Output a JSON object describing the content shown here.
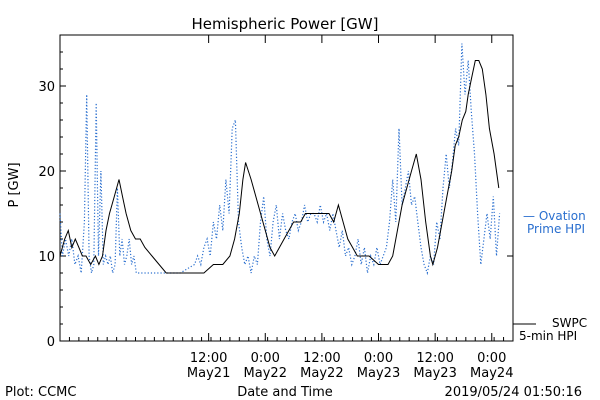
{
  "chart_data": {
    "type": "line",
    "title": "Hemispheric Power [GW]",
    "xlabel": "Date and Time",
    "ylabel": "P [GW]",
    "xlim": [
      "2019-05-20T04:30",
      "2019-05-24T04:30"
    ],
    "ylim": [
      0,
      36
    ],
    "yticks": [
      0,
      10,
      20,
      30
    ],
    "xticks": [
      {
        "t": "2019-05-21T12:00",
        "time": "12:00",
        "date": "May21"
      },
      {
        "t": "2019-05-22T00:00",
        "time": "0:00",
        "date": "May22"
      },
      {
        "t": "2019-05-22T12:00",
        "time": "12:00",
        "date": "May22"
      },
      {
        "t": "2019-05-23T00:00",
        "time": "0:00",
        "date": "May23"
      },
      {
        "t": "2019-05-23T12:00",
        "time": "12:00",
        "date": "May23"
      },
      {
        "t": "2019-05-24T00:00",
        "time": "0:00",
        "date": "May24"
      }
    ],
    "footer_left": "Plot: CCMC",
    "footer_right": "2019/05/24 01:50:16",
    "series": [
      {
        "name": "SWPC 5-min HPI",
        "legend_line1": "SWPC",
        "legend_line2": "5-min HPI",
        "color": "#000000",
        "style": "solid",
        "points": [
          [
            "2019-05-20T04:30",
            10
          ],
          [
            "2019-05-20T05:30",
            12
          ],
          [
            "2019-05-20T06:15",
            13
          ],
          [
            "2019-05-20T07:00",
            11
          ],
          [
            "2019-05-20T07:45",
            12
          ],
          [
            "2019-05-20T08:30",
            11
          ],
          [
            "2019-05-20T09:15",
            10
          ],
          [
            "2019-05-20T10:00",
            10
          ],
          [
            "2019-05-20T11:00",
            9
          ],
          [
            "2019-05-20T12:00",
            10
          ],
          [
            "2019-05-20T12:45",
            9
          ],
          [
            "2019-05-20T13:30",
            10
          ],
          [
            "2019-05-20T14:15",
            13
          ],
          [
            "2019-05-20T15:00",
            15
          ],
          [
            "2019-05-20T16:00",
            17
          ],
          [
            "2019-05-20T17:00",
            19
          ],
          [
            "2019-05-20T17:45",
            17
          ],
          [
            "2019-05-20T18:30",
            15
          ],
          [
            "2019-05-20T19:30",
            13
          ],
          [
            "2019-05-20T20:30",
            12
          ],
          [
            "2019-05-20T21:30",
            12
          ],
          [
            "2019-05-20T22:30",
            11
          ],
          [
            "2019-05-21T00:00",
            10
          ],
          [
            "2019-05-21T01:30",
            9
          ],
          [
            "2019-05-21T03:00",
            8
          ],
          [
            "2019-05-21T06:00",
            8
          ],
          [
            "2019-05-21T09:00",
            8
          ],
          [
            "2019-05-21T11:00",
            8
          ],
          [
            "2019-05-21T13:00",
            9
          ],
          [
            "2019-05-21T15:00",
            9
          ],
          [
            "2019-05-21T16:30",
            10
          ],
          [
            "2019-05-21T17:30",
            12
          ],
          [
            "2019-05-21T18:30",
            15
          ],
          [
            "2019-05-21T19:15",
            19
          ],
          [
            "2019-05-21T19:50",
            21
          ],
          [
            "2019-05-21T21:00",
            19
          ],
          [
            "2019-05-21T22:30",
            16
          ],
          [
            "2019-05-22T00:00",
            13
          ],
          [
            "2019-05-22T01:00",
            11
          ],
          [
            "2019-05-22T02:00",
            10
          ],
          [
            "2019-05-22T03:00",
            11
          ],
          [
            "2019-05-22T04:00",
            12
          ],
          [
            "2019-05-22T05:00",
            13
          ],
          [
            "2019-05-22T06:00",
            14
          ],
          [
            "2019-05-22T07:30",
            14
          ],
          [
            "2019-05-22T08:30",
            15
          ],
          [
            "2019-05-22T10:30",
            15
          ],
          [
            "2019-05-22T12:00",
            15
          ],
          [
            "2019-05-22T13:30",
            15
          ],
          [
            "2019-05-22T14:30",
            14
          ],
          [
            "2019-05-22T15:30",
            16
          ],
          [
            "2019-05-22T16:30",
            14
          ],
          [
            "2019-05-22T17:30",
            12
          ],
          [
            "2019-05-22T18:30",
            11
          ],
          [
            "2019-05-22T19:30",
            10
          ],
          [
            "2019-05-22T21:00",
            10
          ],
          [
            "2019-05-22T22:00",
            10
          ],
          [
            "2019-05-23T00:00",
            9
          ],
          [
            "2019-05-23T02:00",
            9
          ],
          [
            "2019-05-23T03:00",
            10
          ],
          [
            "2019-05-23T04:00",
            13
          ],
          [
            "2019-05-23T05:00",
            16
          ],
          [
            "2019-05-23T06:00",
            18
          ],
          [
            "2019-05-23T07:00",
            20
          ],
          [
            "2019-05-23T08:00",
            22
          ],
          [
            "2019-05-23T09:00",
            19
          ],
          [
            "2019-05-23T10:00",
            14
          ],
          [
            "2019-05-23T11:00",
            10
          ],
          [
            "2019-05-23T11:30",
            9
          ],
          [
            "2019-05-23T12:30",
            11
          ],
          [
            "2019-05-23T13:30",
            14
          ],
          [
            "2019-05-23T14:30",
            17
          ],
          [
            "2019-05-23T15:30",
            20
          ],
          [
            "2019-05-23T16:15",
            23
          ],
          [
            "2019-05-23T17:00",
            24
          ],
          [
            "2019-05-23T17:45",
            26
          ],
          [
            "2019-05-23T18:30",
            27
          ],
          [
            "2019-05-23T19:00",
            29
          ],
          [
            "2019-05-23T19:45",
            31
          ],
          [
            "2019-05-23T20:30",
            33
          ],
          [
            "2019-05-23T21:15",
            33
          ],
          [
            "2019-05-23T22:00",
            32
          ],
          [
            "2019-05-23T22:45",
            29
          ],
          [
            "2019-05-23T23:30",
            25
          ],
          [
            "2019-05-24T00:30",
            22
          ],
          [
            "2019-05-24T01:30",
            18
          ]
        ]
      },
      {
        "name": "Ovation Prime HPI",
        "legend_line1": "— Ovation",
        "legend_line2": "Prime HPI",
        "color": "#2a6fcf",
        "style": "dotted",
        "points": [
          [
            "2019-05-20T04:30",
            15
          ],
          [
            "2019-05-20T05:00",
            10
          ],
          [
            "2019-05-20T05:40",
            12
          ],
          [
            "2019-05-20T06:20",
            10
          ],
          [
            "2019-05-20T07:00",
            12
          ],
          [
            "2019-05-20T07:40",
            9
          ],
          [
            "2019-05-20T08:20",
            10
          ],
          [
            "2019-05-20T09:00",
            8
          ],
          [
            "2019-05-20T09:40",
            14
          ],
          [
            "2019-05-20T10:10",
            29
          ],
          [
            "2019-05-20T10:40",
            10
          ],
          [
            "2019-05-20T11:10",
            8
          ],
          [
            "2019-05-20T11:40",
            9
          ],
          [
            "2019-05-20T12:10",
            28
          ],
          [
            "2019-05-20T12:40",
            10
          ],
          [
            "2019-05-20T13:10",
            20
          ],
          [
            "2019-05-20T13:40",
            9
          ],
          [
            "2019-05-20T14:10",
            10
          ],
          [
            "2019-05-20T14:40",
            9
          ],
          [
            "2019-05-20T15:10",
            10
          ],
          [
            "2019-05-20T15:40",
            8
          ],
          [
            "2019-05-20T16:10",
            9
          ],
          [
            "2019-05-20T16:40",
            18
          ],
          [
            "2019-05-20T17:10",
            10
          ],
          [
            "2019-05-20T17:40",
            12
          ],
          [
            "2019-05-20T18:10",
            9
          ],
          [
            "2019-05-20T18:40",
            10
          ],
          [
            "2019-05-20T19:10",
            12
          ],
          [
            "2019-05-20T19:40",
            9
          ],
          [
            "2019-05-20T20:10",
            10
          ],
          [
            "2019-05-20T20:40",
            8
          ],
          [
            "2019-05-20T22:00",
            8
          ],
          [
            "2019-05-21T00:00",
            8
          ],
          [
            "2019-05-21T03:00",
            8
          ],
          [
            "2019-05-21T06:00",
            8
          ],
          [
            "2019-05-21T09:00",
            9
          ],
          [
            "2019-05-21T09:40",
            10
          ],
          [
            "2019-05-21T10:20",
            9
          ],
          [
            "2019-05-21T11:00",
            11
          ],
          [
            "2019-05-21T11:40",
            12
          ],
          [
            "2019-05-21T12:20",
            10
          ],
          [
            "2019-05-21T13:00",
            14
          ],
          [
            "2019-05-21T13:40",
            12
          ],
          [
            "2019-05-21T14:20",
            16
          ],
          [
            "2019-05-21T15:00",
            13
          ],
          [
            "2019-05-21T15:40",
            19
          ],
          [
            "2019-05-21T16:20",
            15
          ],
          [
            "2019-05-21T17:00",
            25
          ],
          [
            "2019-05-21T17:40",
            26
          ],
          [
            "2019-05-21T18:20",
            14
          ],
          [
            "2019-05-21T19:00",
            11
          ],
          [
            "2019-05-21T19:40",
            9
          ],
          [
            "2019-05-21T20:20",
            10
          ],
          [
            "2019-05-21T21:00",
            8
          ],
          [
            "2019-05-21T21:40",
            10
          ],
          [
            "2019-05-21T22:20",
            9
          ],
          [
            "2019-05-21T23:00",
            14
          ],
          [
            "2019-05-21T23:40",
            17
          ],
          [
            "2019-05-22T00:20",
            12
          ],
          [
            "2019-05-22T01:00",
            10
          ],
          [
            "2019-05-22T01:40",
            14
          ],
          [
            "2019-05-22T02:20",
            16
          ],
          [
            "2019-05-22T03:00",
            12
          ],
          [
            "2019-05-22T03:40",
            15
          ],
          [
            "2019-05-22T04:20",
            13
          ],
          [
            "2019-05-22T05:00",
            12
          ],
          [
            "2019-05-22T05:40",
            14
          ],
          [
            "2019-05-22T06:20",
            15
          ],
          [
            "2019-05-22T07:00",
            13
          ],
          [
            "2019-05-22T07:40",
            14
          ],
          [
            "2019-05-22T08:20",
            16
          ],
          [
            "2019-05-22T09:00",
            14
          ],
          [
            "2019-05-22T09:40",
            15
          ],
          [
            "2019-05-22T10:20",
            15
          ],
          [
            "2019-05-22T11:00",
            14
          ],
          [
            "2019-05-22T11:40",
            16
          ],
          [
            "2019-05-22T12:20",
            14
          ],
          [
            "2019-05-22T13:00",
            15
          ],
          [
            "2019-05-22T13:40",
            13
          ],
          [
            "2019-05-22T14:20",
            15
          ],
          [
            "2019-05-22T15:00",
            13
          ],
          [
            "2019-05-22T15:40",
            11
          ],
          [
            "2019-05-22T16:20",
            13
          ],
          [
            "2019-05-22T17:00",
            10
          ],
          [
            "2019-05-22T17:40",
            11
          ],
          [
            "2019-05-22T18:20",
            9
          ],
          [
            "2019-05-22T19:00",
            10
          ],
          [
            "2019-05-22T19:40",
            12
          ],
          [
            "2019-05-22T20:20",
            9
          ],
          [
            "2019-05-22T21:00",
            11
          ],
          [
            "2019-05-22T21:40",
            8
          ],
          [
            "2019-05-22T22:20",
            10
          ],
          [
            "2019-05-22T23:00",
            9
          ],
          [
            "2019-05-22T23:40",
            11
          ],
          [
            "2019-05-23T00:20",
            9
          ],
          [
            "2019-05-23T01:00",
            10
          ],
          [
            "2019-05-23T01:40",
            11
          ],
          [
            "2019-05-23T02:20",
            14
          ],
          [
            "2019-05-23T03:00",
            19
          ],
          [
            "2019-05-23T03:40",
            14
          ],
          [
            "2019-05-23T04:20",
            25
          ],
          [
            "2019-05-23T05:00",
            16
          ],
          [
            "2019-05-23T05:40",
            18
          ],
          [
            "2019-05-23T06:20",
            20
          ],
          [
            "2019-05-23T07:00",
            16
          ],
          [
            "2019-05-23T07:40",
            17
          ],
          [
            "2019-05-23T08:20",
            14
          ],
          [
            "2019-05-23T09:00",
            11
          ],
          [
            "2019-05-23T09:40",
            9
          ],
          [
            "2019-05-23T10:20",
            8
          ],
          [
            "2019-05-23T11:00",
            10
          ],
          [
            "2019-05-23T11:40",
            9
          ],
          [
            "2019-05-23T12:20",
            14
          ],
          [
            "2019-05-23T13:00",
            12
          ],
          [
            "2019-05-23T13:40",
            18
          ],
          [
            "2019-05-23T14:20",
            22
          ],
          [
            "2019-05-23T15:00",
            18
          ],
          [
            "2019-05-23T15:40",
            21
          ],
          [
            "2019-05-23T16:20",
            25
          ],
          [
            "2019-05-23T17:00",
            23
          ],
          [
            "2019-05-23T17:40",
            35
          ],
          [
            "2019-05-23T18:20",
            29
          ],
          [
            "2019-05-23T19:00",
            33
          ],
          [
            "2019-05-23T19:40",
            27
          ],
          [
            "2019-05-23T20:20",
            22
          ],
          [
            "2019-05-23T21:00",
            15
          ],
          [
            "2019-05-23T21:40",
            9
          ],
          [
            "2019-05-23T22:20",
            12
          ],
          [
            "2019-05-23T23:00",
            15
          ],
          [
            "2019-05-23T23:40",
            12
          ],
          [
            "2019-05-24T00:20",
            17
          ],
          [
            "2019-05-24T01:00",
            10
          ],
          [
            "2019-05-24T01:40",
            15
          ]
        ]
      }
    ]
  }
}
